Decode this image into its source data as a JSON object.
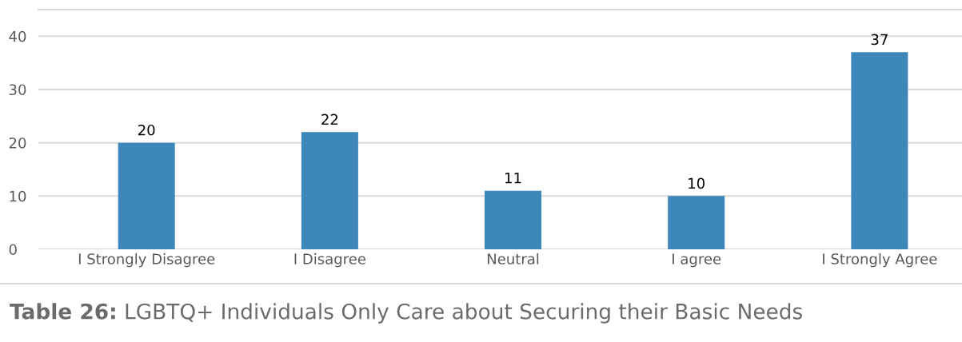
{
  "chart_data": {
    "type": "bar",
    "categories": [
      "I Strongly Disagree",
      "I Disagree",
      "Neutral",
      "I agree",
      "I Strongly Agree"
    ],
    "values": [
      20,
      22,
      11,
      10,
      37
    ],
    "color": "#3e87bb",
    "ylim": [
      0,
      45
    ],
    "yticks": [
      0,
      10,
      20,
      30,
      40
    ],
    "grid": "y",
    "data_labels": true,
    "annotations": [
      "Table 26:",
      "LGBTQ+ Individuals Only Care about Securing their Basic Needs"
    ]
  }
}
